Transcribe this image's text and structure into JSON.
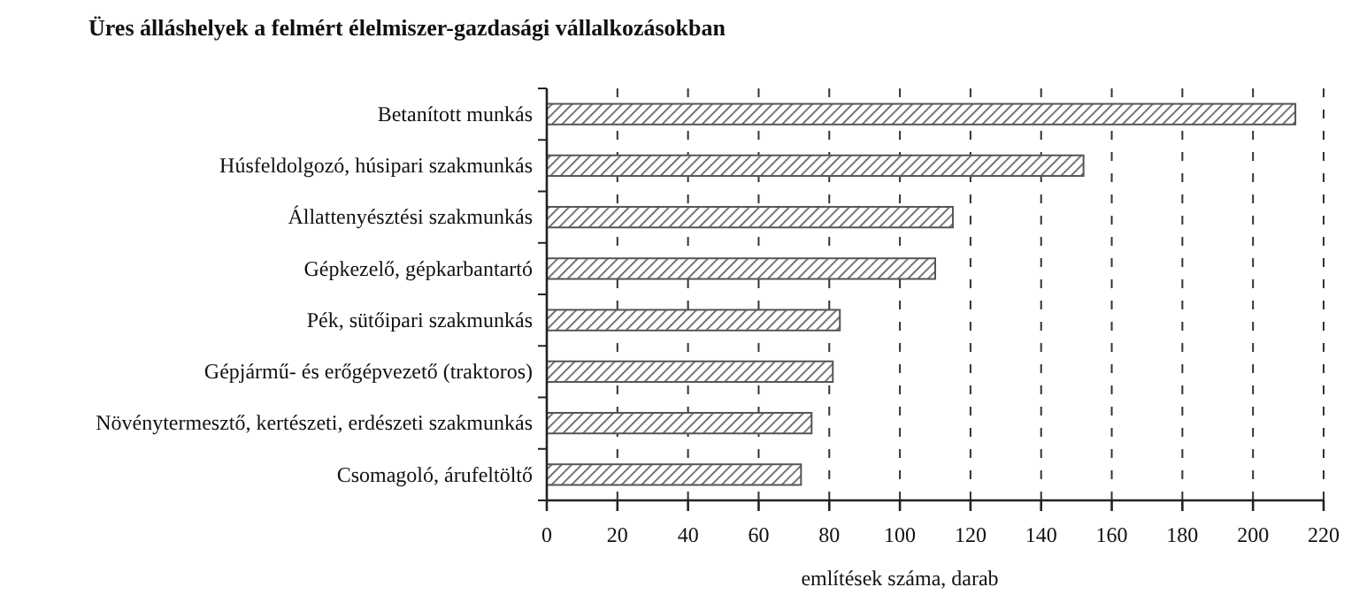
{
  "chart_data": {
    "type": "bar",
    "orientation": "horizontal",
    "title": "Üres álláshelyek a felmért élelmiszer-gazdasági vállalkozásokban",
    "xlabel": "említések száma, darab",
    "categories": [
      "Betanított munkás",
      "Húsfeldolgozó, húsipari szakmunkás",
      "Állattenyésztési szakmunkás",
      "Gépkezelő, gépkarbantartó",
      "Pék, sütőipari szakmunkás",
      "Gépjármű- és erőgépvezető (traktoros)",
      "Növénytermesztő, kertészeti, erdészeti szakmunkás",
      "Csomagoló, árufeltöltő"
    ],
    "values": [
      212,
      152,
      115,
      110,
      83,
      81,
      75,
      72
    ],
    "color": "#555555",
    "xlim": [
      0,
      220
    ],
    "xticks": [
      0,
      20,
      40,
      60,
      80,
      100,
      120,
      140,
      160,
      180,
      200,
      220
    ],
    "grid": "x"
  }
}
